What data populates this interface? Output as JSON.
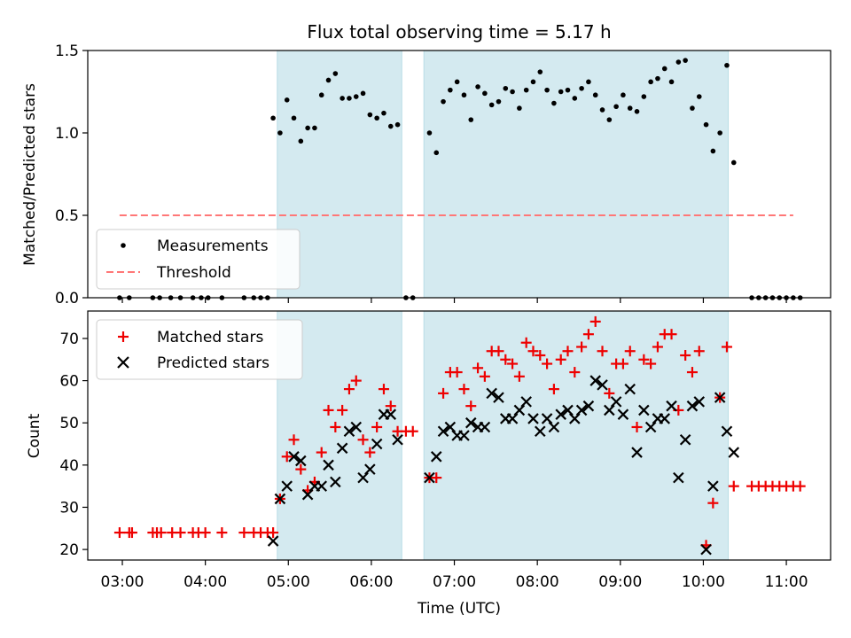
{
  "title": "Flux total observing time = 5.17 h",
  "xlabel": "Time (UTC)",
  "x_ticks": [
    "03:00",
    "04:00",
    "05:00",
    "06:00",
    "07:00",
    "08:00",
    "09:00",
    "10:00",
    "11:00"
  ],
  "colors": {
    "measurements": "#000000",
    "threshold": "#ff7777",
    "matched": "#ee0000",
    "predicted": "#000000",
    "observing_window": "#d4eaf0"
  },
  "chart_data": [
    {
      "type": "scatter",
      "ylabel": "Matched/Predicted stars",
      "xlim": [
        "02:35",
        "11:32"
      ],
      "ylim": [
        0,
        1.5
      ],
      "y_ticks": [
        "0.0",
        "0.5",
        "1.0",
        "1.5"
      ],
      "observing_windows": [
        [
          "04:52",
          "06:22"
        ],
        [
          "06:38",
          "10:18"
        ]
      ],
      "threshold": {
        "label": "Threshold",
        "value": 0.5,
        "x_range": [
          "02:58",
          "11:05"
        ]
      },
      "legend": {
        "position": "lower-left",
        "entries": [
          "Measurements",
          "Threshold"
        ]
      },
      "series": [
        {
          "name": "Measurements",
          "points": [
            [
              "02:58",
              0
            ],
            [
              "03:05",
              0
            ],
            [
              "03:22",
              0
            ],
            [
              "03:27",
              0
            ],
            [
              "03:35",
              0
            ],
            [
              "03:42",
              0
            ],
            [
              "03:51",
              0
            ],
            [
              "03:57",
              0
            ],
            [
              "04:02",
              0
            ],
            [
              "04:12",
              0
            ],
            [
              "04:28",
              0
            ],
            [
              "04:35",
              0
            ],
            [
              "04:40",
              0
            ],
            [
              "04:45",
              0
            ],
            [
              "04:49",
              1.09
            ],
            [
              "04:54",
              1.0
            ],
            [
              "04:59",
              1.2
            ],
            [
              "05:04",
              1.09
            ],
            [
              "05:09",
              0.95
            ],
            [
              "05:14",
              1.03
            ],
            [
              "05:19",
              1.03
            ],
            [
              "05:24",
              1.23
            ],
            [
              "05:29",
              1.32
            ],
            [
              "05:34",
              1.36
            ],
            [
              "05:39",
              1.21
            ],
            [
              "05:44",
              1.21
            ],
            [
              "05:49",
              1.22
            ],
            [
              "05:54",
              1.24
            ],
            [
              "05:59",
              1.11
            ],
            [
              "06:04",
              1.09
            ],
            [
              "06:09",
              1.12
            ],
            [
              "06:14",
              1.04
            ],
            [
              "06:19",
              1.05
            ],
            [
              "06:25",
              0
            ],
            [
              "06:30",
              0
            ],
            [
              "06:42",
              1.0
            ],
            [
              "06:47",
              0.88
            ],
            [
              "06:52",
              1.19
            ],
            [
              "06:57",
              1.26
            ],
            [
              "07:02",
              1.31
            ],
            [
              "07:07",
              1.23
            ],
            [
              "07:12",
              1.08
            ],
            [
              "07:17",
              1.28
            ],
            [
              "07:22",
              1.24
            ],
            [
              "07:27",
              1.17
            ],
            [
              "07:32",
              1.19
            ],
            [
              "07:37",
              1.27
            ],
            [
              "07:42",
              1.25
            ],
            [
              "07:47",
              1.15
            ],
            [
              "07:52",
              1.26
            ],
            [
              "07:57",
              1.31
            ],
            [
              "08:02",
              1.37
            ],
            [
              "08:07",
              1.26
            ],
            [
              "08:12",
              1.18
            ],
            [
              "08:17",
              1.25
            ],
            [
              "08:22",
              1.26
            ],
            [
              "08:27",
              1.21
            ],
            [
              "08:32",
              1.27
            ],
            [
              "08:37",
              1.31
            ],
            [
              "08:42",
              1.23
            ],
            [
              "08:47",
              1.14
            ],
            [
              "08:52",
              1.08
            ],
            [
              "08:57",
              1.16
            ],
            [
              "09:02",
              1.23
            ],
            [
              "09:07",
              1.15
            ],
            [
              "09:12",
              1.13
            ],
            [
              "09:17",
              1.22
            ],
            [
              "09:22",
              1.31
            ],
            [
              "09:27",
              1.33
            ],
            [
              "09:32",
              1.39
            ],
            [
              "09:37",
              1.31
            ],
            [
              "09:42",
              1.43
            ],
            [
              "09:47",
              1.44
            ],
            [
              "09:52",
              1.15
            ],
            [
              "09:57",
              1.22
            ],
            [
              "10:02",
              1.05
            ],
            [
              "10:07",
              0.89
            ],
            [
              "10:12",
              1.0
            ],
            [
              "10:17",
              1.41
            ],
            [
              "10:22",
              0.82
            ],
            [
              "10:35",
              0
            ],
            [
              "10:40",
              0
            ],
            [
              "10:45",
              0
            ],
            [
              "10:50",
              0
            ],
            [
              "10:55",
              0
            ],
            [
              "11:00",
              0
            ],
            [
              "11:05",
              0
            ],
            [
              "11:10",
              0
            ]
          ]
        }
      ]
    },
    {
      "type": "scatter",
      "ylabel": "Count",
      "xlabel": "Time (UTC)",
      "xlim": [
        "02:35",
        "11:32"
      ],
      "ylim": [
        17.5,
        76.5
      ],
      "y_ticks": [
        "20",
        "30",
        "40",
        "50",
        "60",
        "70"
      ],
      "observing_windows": [
        [
          "04:52",
          "06:22"
        ],
        [
          "06:38",
          "10:18"
        ]
      ],
      "legend": {
        "position": "upper-left",
        "entries": [
          "Matched stars",
          "Predicted stars"
        ]
      },
      "series": [
        {
          "name": "Matched stars",
          "marker": "plus",
          "points": [
            [
              "02:58",
              24
            ],
            [
              "03:05",
              24
            ],
            [
              "03:07",
              24
            ],
            [
              "03:22",
              24
            ],
            [
              "03:25",
              24
            ],
            [
              "03:28",
              24
            ],
            [
              "03:36",
              24
            ],
            [
              "03:42",
              24
            ],
            [
              "03:51",
              24
            ],
            [
              "03:55",
              24
            ],
            [
              "04:00",
              24
            ],
            [
              "04:12",
              24
            ],
            [
              "04:28",
              24
            ],
            [
              "04:35",
              24
            ],
            [
              "04:40",
              24
            ],
            [
              "04:45",
              24
            ],
            [
              "04:49",
              24
            ],
            [
              "04:54",
              32
            ],
            [
              "04:59",
              42
            ],
            [
              "05:04",
              46
            ],
            [
              "05:09",
              39
            ],
            [
              "05:14",
              34
            ],
            [
              "05:19",
              36
            ],
            [
              "05:24",
              43
            ],
            [
              "05:29",
              53
            ],
            [
              "05:34",
              49
            ],
            [
              "05:39",
              53
            ],
            [
              "05:44",
              58
            ],
            [
              "05:49",
              60
            ],
            [
              "05:54",
              46
            ],
            [
              "05:59",
              43
            ],
            [
              "06:04",
              49
            ],
            [
              "06:09",
              58
            ],
            [
              "06:14",
              54
            ],
            [
              "06:19",
              48
            ],
            [
              "06:25",
              48
            ],
            [
              "06:30",
              48
            ],
            [
              "06:42",
              37
            ],
            [
              "06:47",
              37
            ],
            [
              "06:52",
              57
            ],
            [
              "06:57",
              62
            ],
            [
              "07:02",
              62
            ],
            [
              "07:07",
              58
            ],
            [
              "07:12",
              54
            ],
            [
              "07:17",
              63
            ],
            [
              "07:22",
              61
            ],
            [
              "07:27",
              67
            ],
            [
              "07:32",
              67
            ],
            [
              "07:37",
              65
            ],
            [
              "07:42",
              64
            ],
            [
              "07:47",
              61
            ],
            [
              "07:52",
              69
            ],
            [
              "07:57",
              67
            ],
            [
              "08:02",
              66
            ],
            [
              "08:07",
              64
            ],
            [
              "08:12",
              58
            ],
            [
              "08:17",
              65
            ],
            [
              "08:22",
              67
            ],
            [
              "08:27",
              62
            ],
            [
              "08:32",
              68
            ],
            [
              "08:37",
              71
            ],
            [
              "08:42",
              74
            ],
            [
              "08:47",
              67
            ],
            [
              "08:52",
              57
            ],
            [
              "08:57",
              64
            ],
            [
              "09:02",
              64
            ],
            [
              "09:07",
              67
            ],
            [
              "09:12",
              49
            ],
            [
              "09:17",
              65
            ],
            [
              "09:22",
              64
            ],
            [
              "09:27",
              68
            ],
            [
              "09:32",
              71
            ],
            [
              "09:37",
              71
            ],
            [
              "09:42",
              53
            ],
            [
              "09:47",
              66
            ],
            [
              "09:52",
              62
            ],
            [
              "09:57",
              67
            ],
            [
              "10:02",
              21
            ],
            [
              "10:07",
              31
            ],
            [
              "10:12",
              56
            ],
            [
              "10:17",
              68
            ],
            [
              "10:22",
              35
            ],
            [
              "10:35",
              35
            ],
            [
              "10:40",
              35
            ],
            [
              "10:45",
              35
            ],
            [
              "10:50",
              35
            ],
            [
              "10:55",
              35
            ],
            [
              "11:00",
              35
            ],
            [
              "11:05",
              35
            ],
            [
              "11:10",
              35
            ]
          ]
        },
        {
          "name": "Predicted stars",
          "marker": "x",
          "points": [
            [
              "04:49",
              22
            ],
            [
              "04:54",
              32
            ],
            [
              "04:59",
              35
            ],
            [
              "05:04",
              42
            ],
            [
              "05:09",
              41
            ],
            [
              "05:14",
              33
            ],
            [
              "05:19",
              35
            ],
            [
              "05:24",
              35
            ],
            [
              "05:29",
              40
            ],
            [
              "05:34",
              36
            ],
            [
              "05:39",
              44
            ],
            [
              "05:44",
              48
            ],
            [
              "05:49",
              49
            ],
            [
              "05:54",
              37
            ],
            [
              "05:59",
              39
            ],
            [
              "06:04",
              45
            ],
            [
              "06:09",
              52
            ],
            [
              "06:14",
              52
            ],
            [
              "06:19",
              46
            ],
            [
              "06:42",
              37
            ],
            [
              "06:47",
              42
            ],
            [
              "06:52",
              48
            ],
            [
              "06:57",
              49
            ],
            [
              "07:02",
              47
            ],
            [
              "07:07",
              47
            ],
            [
              "07:12",
              50
            ],
            [
              "07:17",
              49
            ],
            [
              "07:22",
              49
            ],
            [
              "07:27",
              57
            ],
            [
              "07:32",
              56
            ],
            [
              "07:37",
              51
            ],
            [
              "07:42",
              51
            ],
            [
              "07:47",
              53
            ],
            [
              "07:52",
              55
            ],
            [
              "07:57",
              51
            ],
            [
              "08:02",
              48
            ],
            [
              "08:07",
              51
            ],
            [
              "08:12",
              49
            ],
            [
              "08:17",
              52
            ],
            [
              "08:22",
              53
            ],
            [
              "08:27",
              51
            ],
            [
              "08:32",
              53
            ],
            [
              "08:37",
              54
            ],
            [
              "08:42",
              60
            ],
            [
              "08:47",
              59
            ],
            [
              "08:52",
              53
            ],
            [
              "08:57",
              55
            ],
            [
              "09:02",
              52
            ],
            [
              "09:07",
              58
            ],
            [
              "09:12",
              43
            ],
            [
              "09:17",
              53
            ],
            [
              "09:22",
              49
            ],
            [
              "09:27",
              51
            ],
            [
              "09:32",
              51
            ],
            [
              "09:37",
              54
            ],
            [
              "09:42",
              37
            ],
            [
              "09:47",
              46
            ],
            [
              "09:52",
              54
            ],
            [
              "09:57",
              55
            ],
            [
              "10:02",
              20
            ],
            [
              "10:07",
              35
            ],
            [
              "10:12",
              56
            ],
            [
              "10:17",
              48
            ],
            [
              "10:22",
              43
            ]
          ]
        }
      ]
    }
  ]
}
